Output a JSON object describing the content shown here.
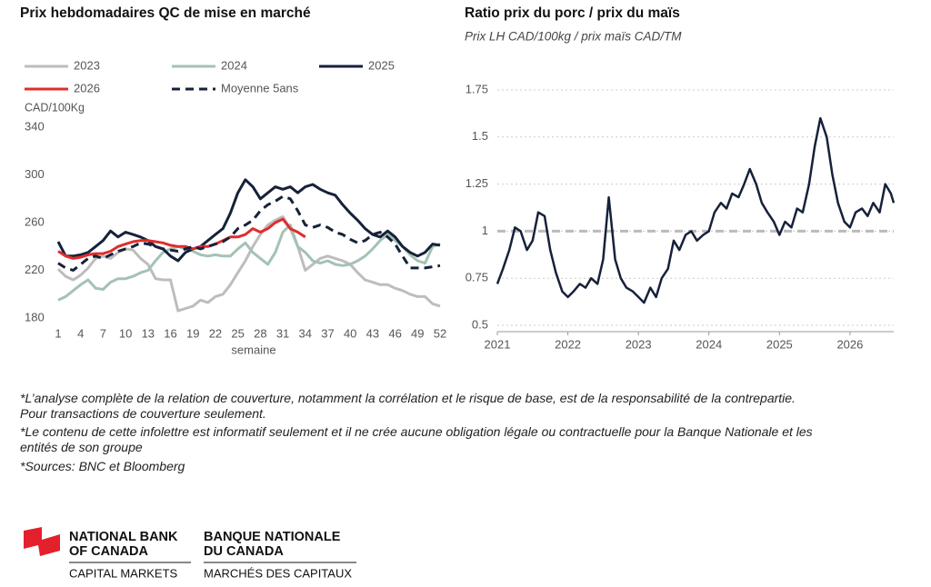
{
  "chart_data": [
    {
      "type": "line",
      "title": "Prix hebdomadaires QC de mise en marché",
      "ylabel": "CAD/100Kg",
      "xlabel": "semaine",
      "x": [
        1,
        2,
        3,
        4,
        5,
        6,
        7,
        8,
        9,
        10,
        11,
        12,
        13,
        14,
        15,
        16,
        17,
        18,
        19,
        20,
        21,
        22,
        23,
        24,
        25,
        26,
        27,
        28,
        29,
        30,
        31,
        32,
        33,
        34,
        35,
        36,
        37,
        38,
        39,
        40,
        41,
        42,
        43,
        44,
        45,
        46,
        47,
        48,
        49,
        50,
        51,
        52
      ],
      "xlim": [
        1,
        52
      ],
      "xticks": [
        1,
        4,
        7,
        10,
        13,
        16,
        19,
        22,
        25,
        28,
        31,
        34,
        37,
        40,
        43,
        46,
        49,
        52
      ],
      "ylim": [
        180,
        340
      ],
      "yticks": [
        180,
        220,
        260,
        300,
        340
      ],
      "grid": false,
      "legend": "top",
      "series": [
        {
          "name": "2023",
          "color": "#bdbdbd",
          "values": [
            221,
            215,
            212,
            216,
            222,
            230,
            232,
            230,
            235,
            238,
            237,
            230,
            225,
            213,
            212,
            212,
            186,
            188,
            190,
            195,
            193,
            198,
            200,
            208,
            218,
            228,
            240,
            250,
            258,
            262,
            265,
            255,
            240,
            220,
            225,
            230,
            232,
            230,
            228,
            225,
            218,
            212,
            210,
            208,
            208,
            205,
            203,
            200,
            198,
            198,
            192,
            190
          ]
        },
        {
          "name": "2024",
          "color": "#a3c2b5",
          "values": [
            195,
            198,
            203,
            208,
            212,
            205,
            204,
            210,
            213,
            213,
            215,
            218,
            220,
            228,
            235,
            238,
            240,
            238,
            236,
            233,
            232,
            233,
            232,
            232,
            238,
            243,
            235,
            230,
            225,
            235,
            252,
            258,
            240,
            235,
            228,
            226,
            228,
            225,
            224,
            225,
            228,
            232,
            238,
            245,
            250,
            245,
            240,
            233,
            228,
            226,
            240,
            242
          ]
        },
        {
          "name": "2025",
          "color": "#16213a",
          "values": [
            244,
            232,
            232,
            233,
            235,
            240,
            245,
            253,
            248,
            252,
            250,
            248,
            245,
            240,
            238,
            232,
            228,
            235,
            238,
            240,
            245,
            250,
            255,
            268,
            285,
            296,
            290,
            280,
            285,
            290,
            288,
            290,
            285,
            290,
            292,
            288,
            285,
            283,
            275,
            268,
            262,
            255,
            250,
            248,
            253,
            248,
            240,
            235,
            232,
            235,
            242,
            241
          ]
        },
        {
          "name": "2026",
          "color": "#e02d2d",
          "values": [
            236,
            232,
            230,
            231,
            233,
            234,
            234,
            236,
            240,
            242,
            244,
            245,
            245,
            244,
            243,
            241,
            240,
            240,
            238,
            240,
            240,
            242,
            245,
            248,
            248,
            250,
            255,
            252,
            255,
            260,
            263,
            255,
            252,
            248,
            null,
            null,
            null,
            null,
            null,
            null,
            null,
            null,
            null,
            null,
            null,
            null,
            null,
            null,
            null,
            null,
            null,
            null
          ]
        },
        {
          "name": "Moyenne 5ans",
          "color": "#16213a",
          "dashed": true,
          "values": [
            226,
            222,
            220,
            225,
            230,
            232,
            230,
            233,
            236,
            238,
            240,
            243,
            242,
            240,
            238,
            237,
            236,
            238,
            240,
            238,
            240,
            242,
            244,
            248,
            255,
            258,
            262,
            270,
            275,
            278,
            282,
            280,
            270,
            258,
            256,
            258,
            256,
            252,
            250,
            246,
            243,
            245,
            250,
            252,
            248,
            242,
            232,
            222,
            222,
            222,
            223,
            224
          ]
        }
      ]
    },
    {
      "type": "line",
      "title": "Ratio prix du porc / prix du maïs",
      "subtitle": "Prix LH CAD/100kg / prix maïs CAD/TM",
      "x": [
        2021,
        2021.08,
        2021.17,
        2021.25,
        2021.33,
        2021.42,
        2021.5,
        2021.58,
        2021.67,
        2021.75,
        2021.83,
        2021.92,
        2022,
        2022.08,
        2022.17,
        2022.25,
        2022.33,
        2022.42,
        2022.5,
        2022.58,
        2022.67,
        2022.75,
        2022.83,
        2022.92,
        2023,
        2023.08,
        2023.17,
        2023.25,
        2023.33,
        2023.42,
        2023.5,
        2023.58,
        2023.67,
        2023.75,
        2023.83,
        2023.92,
        2024,
        2024.08,
        2024.17,
        2024.25,
        2024.33,
        2024.42,
        2024.5,
        2024.58,
        2024.67,
        2024.75,
        2024.83,
        2024.92,
        2025,
        2025.08,
        2025.17,
        2025.25,
        2025.33,
        2025.42,
        2025.5,
        2025.58,
        2025.67,
        2025.75,
        2025.83,
        2025.92,
        2026,
        2026.08,
        2026.17,
        2026.25,
        2026.33,
        2026.42,
        2026.5,
        2026.58,
        2026.62
      ],
      "values": [
        0.72,
        0.8,
        0.9,
        1.02,
        1.0,
        0.9,
        0.95,
        1.1,
        1.08,
        0.9,
        0.78,
        0.68,
        0.65,
        0.68,
        0.72,
        0.7,
        0.75,
        0.72,
        0.85,
        1.18,
        0.85,
        0.75,
        0.7,
        0.68,
        0.65,
        0.62,
        0.7,
        0.65,
        0.75,
        0.8,
        0.95,
        0.9,
        0.98,
        1.0,
        0.95,
        0.98,
        1.0,
        1.1,
        1.15,
        1.12,
        1.2,
        1.18,
        1.25,
        1.33,
        1.25,
        1.15,
        1.1,
        1.05,
        0.98,
        1.05,
        1.02,
        1.12,
        1.1,
        1.25,
        1.45,
        1.6,
        1.5,
        1.3,
        1.15,
        1.05,
        1.02,
        1.1,
        1.12,
        1.08,
        1.15,
        1.1,
        1.25,
        1.2,
        1.15
      ],
      "color": "#16213a",
      "xlim": [
        2021,
        2026.62
      ],
      "xticks": [
        2021,
        2022,
        2023,
        2024,
        2025,
        2026
      ],
      "ylim": [
        0.5,
        1.75
      ],
      "yticks": [
        0.5,
        0.75,
        1,
        1.25,
        1.5,
        1.75
      ],
      "grid": true,
      "reference_line": 1
    }
  ],
  "notes": [
    "*L’analyse complète de la relation de couverture, notamment la corrélation et le risque de base, est de la responsabilité de la contrepartie. Pour transactions de couverture seulement.",
    "*Le contenu de cette infolettre est informatif seulement et il ne crée aucune obligation légale ou contractuelle pour la Banque Nationale et les entités de son groupe",
    "*Sources: BNC et Bloomberg"
  ],
  "logo": {
    "en_name": [
      "NATIONAL BANK",
      "OF CANADA"
    ],
    "en_division": "CAPITAL MARKETS",
    "fr_name": [
      "BANQUE NATIONALE",
      "DU CANADA"
    ],
    "fr_division": "MARCHÉS DES CAPITAUX"
  }
}
